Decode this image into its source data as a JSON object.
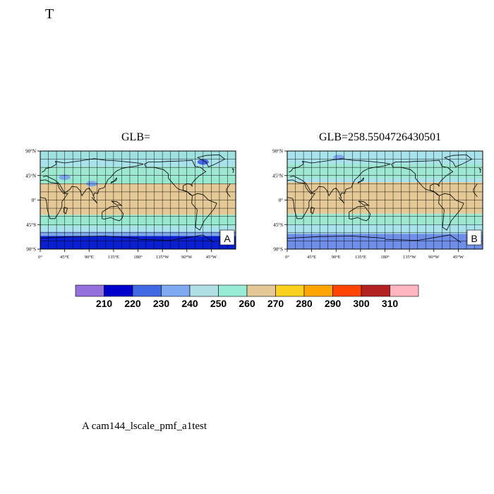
{
  "figure": {
    "title": "T",
    "footer": "A  cam144_lscale_pmf_a1test"
  },
  "panels": [
    {
      "id": "A",
      "title": "GLB=",
      "corner_label": "A",
      "lat_ticks": [
        "90°N",
        "45°N",
        "0°",
        "45°S",
        "90°S"
      ],
      "lon_ticks": [
        "0°",
        "45°E",
        "90°E",
        "135°E",
        "180°",
        "135°W",
        "90°W",
        "45°W"
      ],
      "bands": [
        {
          "lat_from": 90,
          "lat_to": 75,
          "color": "#9fe0e0"
        },
        {
          "lat_from": 75,
          "lat_to": 62,
          "color": "#a8e2ea"
        },
        {
          "lat_from": 62,
          "lat_to": 42,
          "color": "#9ee8d2"
        },
        {
          "lat_from": 42,
          "lat_to": 30,
          "color": "#98e8d0"
        },
        {
          "lat_from": 30,
          "lat_to": -27,
          "color": "#e4c896"
        },
        {
          "lat_from": -27,
          "lat_to": -48,
          "color": "#98e8d0"
        },
        {
          "lat_from": -48,
          "lat_to": -58,
          "color": "#a8e2ea"
        },
        {
          "lat_from": -58,
          "lat_to": -66,
          "color": "#7ea8ec"
        },
        {
          "lat_from": -66,
          "lat_to": -90,
          "color": "#0a1fd0"
        }
      ],
      "blobs": [
        {
          "lon": 95,
          "lat": 30,
          "color": "#7ea8ec"
        },
        {
          "lon": 45,
          "lat": 42,
          "color": "#7ea8ec"
        },
        {
          "lon": 300,
          "lat": 70,
          "color": "#4a66e8"
        }
      ]
    },
    {
      "id": "B",
      "title": "GLB=258.5504726430501",
      "corner_label": "B",
      "lat_ticks": [
        "90°N",
        "45°N",
        "0°",
        "45°S",
        "90°S"
      ],
      "lon_ticks": [
        "0°",
        "45°E",
        "90°E",
        "135°E",
        "180°",
        "135°W",
        "90°W",
        "45°W"
      ],
      "bands": [
        {
          "lat_from": 90,
          "lat_to": 66,
          "color": "#a8e2ea"
        },
        {
          "lat_from": 66,
          "lat_to": 40,
          "color": "#9ee8d2"
        },
        {
          "lat_from": 40,
          "lat_to": 33,
          "color": "#a8e2ea"
        },
        {
          "lat_from": 33,
          "lat_to": -25,
          "color": "#e4c896"
        },
        {
          "lat_from": -25,
          "lat_to": -45,
          "color": "#9ee8d2"
        },
        {
          "lat_from": -45,
          "lat_to": -62,
          "color": "#a8e2ea"
        },
        {
          "lat_from": -62,
          "lat_to": -90,
          "color": "#6e8ee8"
        }
      ],
      "blobs": [
        {
          "lon": 95,
          "lat": 78,
          "color": "#7ea8ec"
        }
      ]
    }
  ],
  "colorbar": {
    "colors": [
      "#9370db",
      "#0000cd",
      "#4169e1",
      "#7fa9f0",
      "#b0e0e6",
      "#98ebd4",
      "#e3c797",
      "#fad21e",
      "#ffa500",
      "#ff4500",
      "#b22222",
      "#ffb6c1"
    ],
    "labels": [
      "210",
      "220",
      "230",
      "240",
      "250",
      "260",
      "270",
      "280",
      "290",
      "300",
      "310"
    ]
  }
}
